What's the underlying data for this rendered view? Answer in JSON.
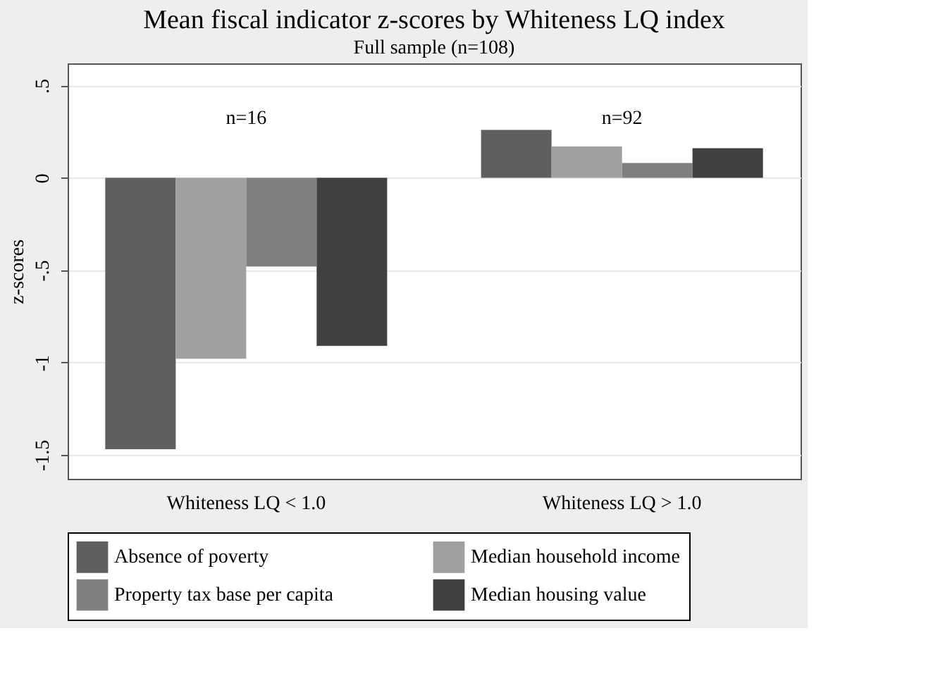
{
  "chart_data": {
    "type": "bar",
    "title": "Mean fiscal indicator z-scores by Whiteness LQ index",
    "subtitle": "Full sample (n=108)",
    "ylabel": "z-scores",
    "categories": [
      "Whiteness LQ < 1.0",
      "Whiteness LQ > 1.0"
    ],
    "series": [
      {
        "name": "Absence of poverty",
        "color": "#5f5f5f",
        "values": [
          -1.47,
          0.26
        ]
      },
      {
        "name": "Median household income",
        "color": "#a0a0a0",
        "values": [
          -0.98,
          0.17
        ]
      },
      {
        "name": "Property tax base per capita",
        "color": "#7f7f7f",
        "values": [
          -0.48,
          0.08
        ]
      },
      {
        "name": "Median housing value",
        "color": "#404040",
        "values": [
          -0.91,
          0.16
        ]
      }
    ],
    "ylim": [
      -1.63,
      0.62
    ],
    "yticks": [
      {
        "value": 0.5,
        "label": ".5"
      },
      0,
      {
        "value": -0.5,
        "label": "-.5"
      },
      -1,
      {
        "value": -1.5,
        "label": "-1.5"
      }
    ],
    "annotations": [
      "n=16",
      "n=92"
    ],
    "grid": "y",
    "legend": "bottom"
  }
}
